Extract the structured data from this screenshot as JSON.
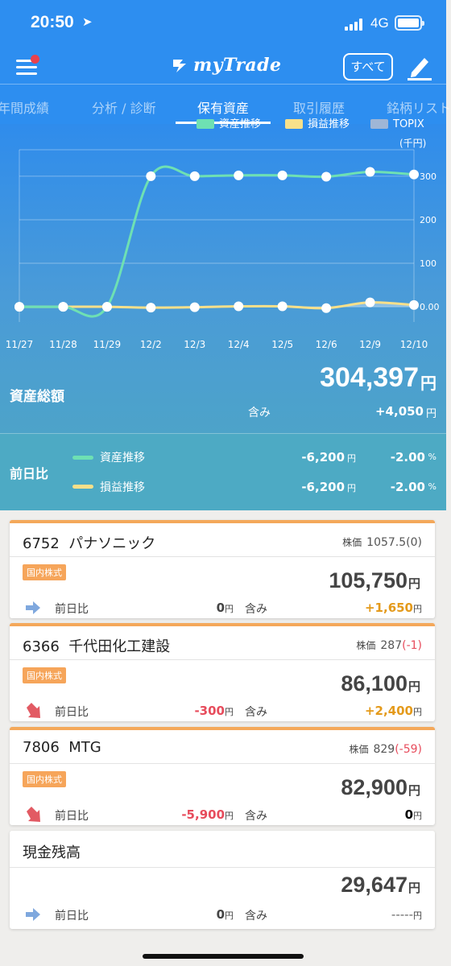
{
  "status_bar": {
    "time": "20:50",
    "network": "4G"
  },
  "header": {
    "app_name": "myTrade",
    "all_button": "すべて"
  },
  "tabs": [
    {
      "label": "年間成績"
    },
    {
      "label": "分析 / 診断"
    },
    {
      "label": "保有資産",
      "active": true
    },
    {
      "label": "取引履歴"
    },
    {
      "label": "銘柄リスト"
    }
  ],
  "legend": {
    "asset": "資産推移",
    "profit": "損益推移",
    "topix": "TOPIX"
  },
  "chart_data": {
    "type": "line",
    "unit_label": "(千円)",
    "categories": [
      "11/27",
      "11/28",
      "11/29",
      "12/2",
      "12/3",
      "12/4",
      "12/5",
      "12/6",
      "12/9",
      "12/10"
    ],
    "y_ticks": [
      "300",
      "200",
      "100",
      "0.00"
    ],
    "ylim": [
      -35,
      335
    ],
    "grid": true,
    "legend_position": "top",
    "series": [
      {
        "name": "資産推移",
        "color": "#6ee0b3",
        "values": [
          0,
          0,
          0,
          300,
          300,
          302,
          302,
          299,
          310,
          304
        ]
      },
      {
        "name": "損益推移",
        "color": "#f8e08a",
        "values": [
          0,
          0,
          0,
          -2,
          -1,
          1,
          1,
          -3,
          10,
          4
        ]
      }
    ]
  },
  "summary": {
    "total_label": "資産総額",
    "total_value": "304,397",
    "yen": "円",
    "incl_label": "含み",
    "incl_value": "+4,050",
    "prev_label": "前日比",
    "rows": [
      {
        "name": "資産推移",
        "amount": "-6,200",
        "pct": "-2.00"
      },
      {
        "name": "損益推移",
        "amount": "-6,200",
        "pct": "-2.00"
      }
    ],
    "pct_unit": "%"
  },
  "holdings": [
    {
      "code": "6752",
      "name": "パナソニック",
      "price_label": "株価",
      "price": "1057.5",
      "change": "(0)",
      "badge": "国内株式",
      "amount": "105,750",
      "prev_label": "前日比",
      "prev_value": "0",
      "incl_label": "含み",
      "incl_value": "+1,650"
    },
    {
      "code": "6366",
      "name": "千代田化工建設",
      "price_label": "株価",
      "price": "287",
      "change": "(-1)",
      "badge": "国内株式",
      "amount": "86,100",
      "prev_label": "前日比",
      "prev_value": "-300",
      "incl_label": "含み",
      "incl_value": "+2,400"
    },
    {
      "code": "7806",
      "name": "MTG",
      "price_label": "株価",
      "price": "829",
      "change": "(-59)",
      "badge": "国内株式",
      "amount": "82,900",
      "prev_label": "前日比",
      "prev_value": "-5,900",
      "incl_label": "含み",
      "incl_value": "0"
    }
  ],
  "cash": {
    "title": "現金残高",
    "amount": "29,647",
    "prev_label": "前日比",
    "prev_value": "0",
    "incl_label": "含み",
    "incl_value": "-----"
  },
  "colors": {
    "header_blue": "#2d8ef0",
    "badge_orange": "#f6a55a",
    "loss_red": "#e74c5c",
    "gain_orange": "#e49a1b"
  }
}
